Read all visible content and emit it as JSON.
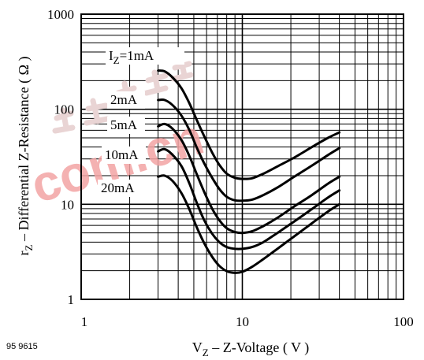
{
  "figure_id": "95 9615",
  "watermark": {
    "text": "com.cn",
    "color": "#f2a3a3",
    "pictograph_color": "#e9d4d4"
  },
  "colors": {
    "ink": "#000000",
    "grid": "#000000"
  },
  "chart_data": {
    "type": "line",
    "title": "",
    "xscale": "log",
    "yscale": "log",
    "xlim": [
      1,
      100
    ],
    "ylim": [
      1,
      1000
    ],
    "grid": true,
    "legend": "none",
    "xlabel": {
      "main": "V",
      "sub": "Z",
      "rest": " – Z-Voltage ( V )"
    },
    "ylabel": {
      "main": "r",
      "sub": "Z",
      "rest": " – Differential Z-Resistance ( Ω )"
    },
    "xticks": [
      {
        "value": 1,
        "label": "1"
      },
      {
        "value": 10,
        "label": "10"
      },
      {
        "value": 100,
        "label": "100"
      }
    ],
    "yticks": [
      {
        "value": 1,
        "label": "1"
      },
      {
        "value": 10,
        "label": "10"
      },
      {
        "value": 100,
        "label": "100"
      },
      {
        "value": 1000,
        "label": "1000"
      }
    ],
    "series": [
      {
        "name": "1mA",
        "label_prefix": "I",
        "label_sub": "Z",
        "label_suffix": "=1mA",
        "points": [
          [
            3.0,
            255
          ],
          [
            3.3,
            250
          ],
          [
            3.7,
            215
          ],
          [
            4.2,
            165
          ],
          [
            4.7,
            115
          ],
          [
            5.2,
            78
          ],
          [
            5.8,
            52
          ],
          [
            6.5,
            35
          ],
          [
            7.2,
            26
          ],
          [
            8.0,
            21
          ],
          [
            9.0,
            19
          ],
          [
            10.0,
            18.5
          ],
          [
            11.5,
            18.8
          ],
          [
            13.5,
            21
          ],
          [
            16.5,
            25
          ],
          [
            21,
            31
          ],
          [
            27,
            40
          ],
          [
            34,
            50
          ],
          [
            40,
            57
          ]
        ]
      },
      {
        "name": "2mA",
        "label_prefix": "",
        "label_sub": "",
        "label_suffix": "2mA",
        "points": [
          [
            3.0,
            125
          ],
          [
            3.3,
            125
          ],
          [
            3.7,
            110
          ],
          [
            4.2,
            85
          ],
          [
            4.7,
            60
          ],
          [
            5.2,
            40
          ],
          [
            5.8,
            27
          ],
          [
            6.5,
            19
          ],
          [
            7.2,
            14.5
          ],
          [
            8.0,
            12
          ],
          [
            9.0,
            11
          ],
          [
            10.0,
            10.9
          ],
          [
            11.5,
            11.2
          ],
          [
            13.5,
            12.5
          ],
          [
            16.5,
            15
          ],
          [
            21,
            19.5
          ],
          [
            27,
            25.5
          ],
          [
            34,
            33
          ],
          [
            40,
            39
          ]
        ]
      },
      {
        "name": "5mA",
        "label_prefix": "",
        "label_sub": "",
        "label_suffix": "5mA",
        "points": [
          [
            3.0,
            66
          ],
          [
            3.3,
            70
          ],
          [
            3.7,
            62
          ],
          [
            4.2,
            47
          ],
          [
            4.7,
            32
          ],
          [
            5.2,
            21
          ],
          [
            5.8,
            13.5
          ],
          [
            6.5,
            9
          ],
          [
            7.2,
            6.8
          ],
          [
            8.0,
            5.6
          ],
          [
            9.0,
            5.1
          ],
          [
            10.0,
            5.0
          ],
          [
            11.5,
            5.2
          ],
          [
            13.5,
            5.9
          ],
          [
            16.5,
            7.2
          ],
          [
            21,
            9.5
          ],
          [
            27,
            12.5
          ],
          [
            34,
            16.5
          ],
          [
            40,
            19.5
          ]
        ]
      },
      {
        "name": "10mA",
        "label_prefix": "",
        "label_sub": "",
        "label_suffix": "10mA",
        "points": [
          [
            3.0,
            36
          ],
          [
            3.3,
            38
          ],
          [
            3.7,
            33
          ],
          [
            4.2,
            25
          ],
          [
            4.7,
            16.5
          ],
          [
            5.2,
            10.5
          ],
          [
            5.8,
            6.8
          ],
          [
            6.5,
            4.9
          ],
          [
            7.2,
            4.0
          ],
          [
            8.0,
            3.55
          ],
          [
            9.0,
            3.4
          ],
          [
            10.0,
            3.4
          ],
          [
            11.5,
            3.55
          ],
          [
            13.5,
            4.0
          ],
          [
            16.5,
            5.0
          ],
          [
            21,
            6.6
          ],
          [
            27,
            8.9
          ],
          [
            34,
            11.8
          ],
          [
            40,
            14
          ]
        ]
      },
      {
        "name": "20mA",
        "label_prefix": "",
        "label_sub": "",
        "label_suffix": "20mA",
        "points": [
          [
            3.0,
            19.5
          ],
          [
            3.3,
            20
          ],
          [
            3.7,
            17.5
          ],
          [
            4.2,
            13
          ],
          [
            4.7,
            8.8
          ],
          [
            5.2,
            5.8
          ],
          [
            5.8,
            3.9
          ],
          [
            6.5,
            2.8
          ],
          [
            7.2,
            2.25
          ],
          [
            8.0,
            1.98
          ],
          [
            9.0,
            1.9
          ],
          [
            10.0,
            1.95
          ],
          [
            11.5,
            2.2
          ],
          [
            13.5,
            2.65
          ],
          [
            16.5,
            3.4
          ],
          [
            21,
            4.6
          ],
          [
            27,
            6.3
          ],
          [
            34,
            8.4
          ],
          [
            40,
            10
          ]
        ]
      }
    ]
  }
}
